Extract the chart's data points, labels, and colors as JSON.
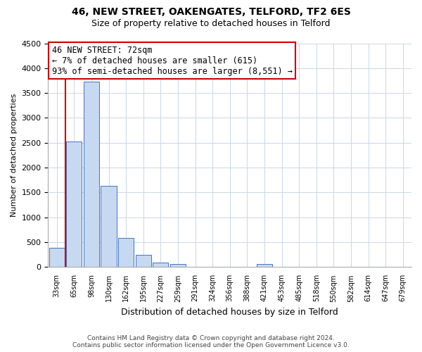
{
  "title": "46, NEW STREET, OAKENGATES, TELFORD, TF2 6ES",
  "subtitle": "Size of property relative to detached houses in Telford",
  "xlabel": "Distribution of detached houses by size in Telford",
  "ylabel": "Number of detached properties",
  "bar_labels": [
    "33sqm",
    "65sqm",
    "98sqm",
    "130sqm",
    "162sqm",
    "195sqm",
    "227sqm",
    "259sqm",
    "291sqm",
    "324sqm",
    "356sqm",
    "388sqm",
    "421sqm",
    "453sqm",
    "485sqm",
    "518sqm",
    "550sqm",
    "582sqm",
    "614sqm",
    "647sqm",
    "679sqm"
  ],
  "bar_values": [
    390,
    2520,
    3730,
    1630,
    590,
    245,
    95,
    60,
    0,
    0,
    0,
    0,
    65,
    0,
    0,
    0,
    0,
    0,
    0,
    0,
    0
  ],
  "bar_color": "#c6d9f0",
  "bar_edge_color": "#4472c4",
  "ylim": [
    0,
    4500
  ],
  "yticks": [
    0,
    500,
    1000,
    1500,
    2000,
    2500,
    3000,
    3500,
    4000,
    4500
  ],
  "marker_line_color": "#cc0000",
  "annotation_title": "46 NEW STREET: 72sqm",
  "annotation_line1": "← 7% of detached houses are smaller (615)",
  "annotation_line2": "93% of semi-detached houses are larger (8,551) →",
  "annotation_box_color": "#ffffff",
  "annotation_box_edge": "#cc0000",
  "footer_line1": "Contains HM Land Registry data © Crown copyright and database right 2024.",
  "footer_line2": "Contains public sector information licensed under the Open Government Licence v3.0.",
  "bg_color": "#ffffff",
  "grid_color": "#c8d8e8"
}
